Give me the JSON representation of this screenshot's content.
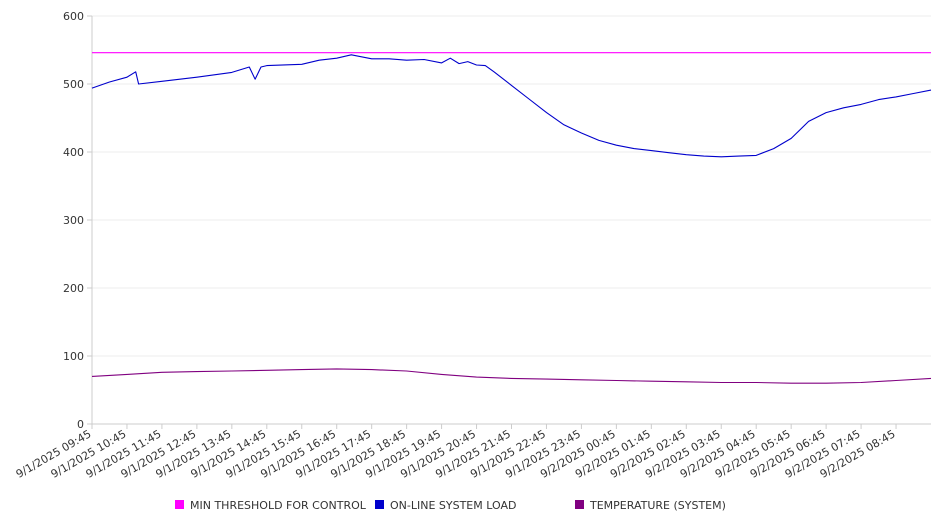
{
  "chart_data": {
    "type": "line",
    "title": "",
    "xlabel": "",
    "ylabel": "",
    "ylim": [
      0,
      600
    ],
    "yticks": [
      0,
      100,
      200,
      300,
      400,
      500,
      600
    ],
    "grid": true,
    "legend_position": "bottom",
    "x_tick_labels": [
      "9/1/2025 09:45",
      "9/1/2025 10:45",
      "9/1/2025 11:45",
      "9/1/2025 12:45",
      "9/1/2025 13:45",
      "9/1/2025 14:45",
      "9/1/2025 15:45",
      "9/1/2025 16:45",
      "9/1/2025 17:45",
      "9/1/2025 18:45",
      "9/1/2025 19:45",
      "9/1/2025 20:45",
      "9/1/2025 21:45",
      "9/1/2025 22:45",
      "9/1/2025 23:45",
      "9/2/2025 00:45",
      "9/2/2025 01:45",
      "9/2/2025 02:45",
      "9/2/2025 03:45",
      "9/2/2025 04:45",
      "9/2/2025 05:45",
      "9/2/2025 06:45",
      "9/2/2025 07:45",
      "9/2/2025 08:45"
    ],
    "x_range": [
      "9/1/2025 09:45",
      "9/2/2025 09:45"
    ],
    "series": [
      {
        "name": "MIN THRESHOLD FOR CONTROL",
        "color": "#ff00ff",
        "x": [
          "9/1/2025 09:45",
          "9/2/2025 09:45"
        ],
        "values": [
          546,
          546
        ]
      },
      {
        "name": "ON-LINE SYSTEM LOAD",
        "color": "#0000cc",
        "x": [
          "9/1/2025 09:45",
          "9/1/2025 10:15",
          "9/1/2025 10:45",
          "9/1/2025 11:00",
          "9/1/2025 11:05",
          "9/1/2025 11:45",
          "9/1/2025 12:45",
          "9/1/2025 13:45",
          "9/1/2025 14:15",
          "9/1/2025 14:25",
          "9/1/2025 14:35",
          "9/1/2025 14:45",
          "9/1/2025 15:45",
          "9/1/2025 16:15",
          "9/1/2025 16:45",
          "9/1/2025 17:10",
          "9/1/2025 17:45",
          "9/1/2025 18:15",
          "9/1/2025 18:45",
          "9/1/2025 19:15",
          "9/1/2025 19:45",
          "9/1/2025 20:00",
          "9/1/2025 20:15",
          "9/1/2025 20:30",
          "9/1/2025 20:45",
          "9/1/2025 21:00",
          "9/1/2025 21:15",
          "9/1/2025 21:45",
          "9/1/2025 22:15",
          "9/1/2025 22:45",
          "9/1/2025 23:15",
          "9/1/2025 23:45",
          "9/2/2025 00:15",
          "9/2/2025 00:45",
          "9/2/2025 01:15",
          "9/2/2025 01:45",
          "9/2/2025 02:15",
          "9/2/2025 02:45",
          "9/2/2025 03:15",
          "9/2/2025 03:45",
          "9/2/2025 04:15",
          "9/2/2025 04:45",
          "9/2/2025 05:15",
          "9/2/2025 05:45",
          "9/2/2025 06:15",
          "9/2/2025 06:45",
          "9/2/2025 07:15",
          "9/2/2025 07:45",
          "9/2/2025 08:15",
          "9/2/2025 08:45",
          "9/2/2025 09:15",
          "9/2/2025 09:45"
        ],
        "values": [
          494,
          503,
          510,
          518,
          500,
          504,
          510,
          517,
          525,
          507,
          525,
          527,
          529,
          535,
          538,
          543,
          537,
          537,
          535,
          536,
          531,
          538,
          530,
          533,
          528,
          527,
          518,
          498,
          478,
          458,
          440,
          428,
          417,
          410,
          405,
          402,
          399,
          396,
          394,
          393,
          394,
          395,
          405,
          420,
          445,
          458,
          465,
          470,
          477,
          481,
          486,
          491
        ]
      },
      {
        "name": "TEMPERATURE (SYSTEM)",
        "color": "#800080",
        "x": [
          "9/1/2025 09:45",
          "9/1/2025 10:45",
          "9/1/2025 11:45",
          "9/1/2025 12:45",
          "9/1/2025 13:45",
          "9/1/2025 14:45",
          "9/1/2025 15:45",
          "9/1/2025 16:45",
          "9/1/2025 17:45",
          "9/1/2025 18:45",
          "9/1/2025 19:45",
          "9/1/2025 20:45",
          "9/1/2025 21:45",
          "9/1/2025 22:45",
          "9/1/2025 23:45",
          "9/2/2025 00:45",
          "9/2/2025 01:45",
          "9/2/2025 02:45",
          "9/2/2025 03:45",
          "9/2/2025 04:45",
          "9/2/2025 05:45",
          "9/2/2025 06:45",
          "9/2/2025 07:45",
          "9/2/2025 08:45",
          "9/2/2025 09:45"
        ],
        "values": [
          70,
          73,
          76,
          77,
          78,
          79,
          80,
          81,
          80,
          78,
          73,
          69,
          67,
          66,
          65,
          64,
          63,
          62,
          61,
          61,
          60,
          60,
          61,
          64,
          67
        ]
      }
    ]
  }
}
